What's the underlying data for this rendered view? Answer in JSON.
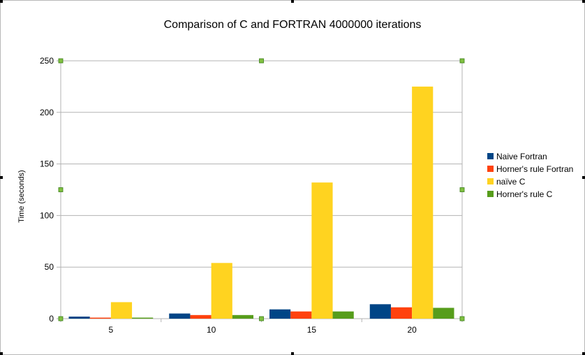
{
  "chart_data": {
    "type": "bar",
    "title": "Comparison of C and FORTRAN 4000000 iterations",
    "xlabel": "",
    "ylabel": "Time (seconds)",
    "categories": [
      "5",
      "10",
      "15",
      "20"
    ],
    "ylim": [
      0,
      250
    ],
    "yticks": [
      0,
      50,
      100,
      150,
      200,
      250
    ],
    "grid": true,
    "legend_position": "right",
    "series": [
      {
        "name": "Naive Fortran",
        "color": "#004586",
        "values": [
          2,
          5,
          9,
          14
        ]
      },
      {
        "name": "Horner's rule Fortran",
        "color": "#ff420e",
        "values": [
          1,
          3.5,
          7,
          11
        ]
      },
      {
        "name": "naïve C",
        "color": "#ffd320",
        "values": [
          16,
          54,
          132,
          225
        ]
      },
      {
        "name": "Horner's rule C",
        "color": "#579d1c",
        "values": [
          1,
          3.5,
          7,
          10.5
        ]
      }
    ]
  },
  "selection_handle_color": "#80c040"
}
